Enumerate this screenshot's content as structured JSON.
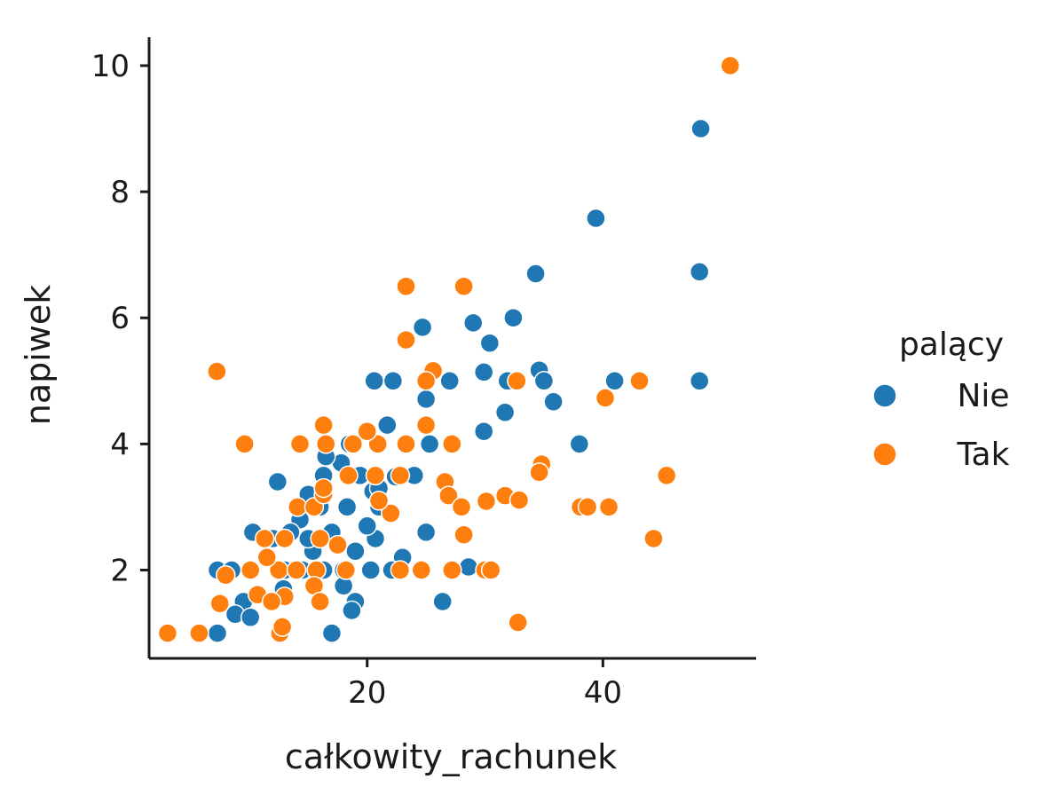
{
  "chart_data": {
    "type": "scatter",
    "xlabel": "całkowity_rachunek",
    "ylabel": "napiwek",
    "xlim": [
      1.5,
      53
    ],
    "ylim": [
      0.6,
      10.45
    ],
    "x_ticks": [
      20,
      40
    ],
    "y_ticks": [
      2,
      4,
      6,
      8,
      10
    ],
    "grid": false,
    "legend": {
      "title": "palący",
      "position": "right",
      "entries": [
        {
          "label": "Nie",
          "color": "#1f77b4"
        },
        {
          "label": "Tak",
          "color": "#ff7f0e"
        }
      ]
    },
    "series": [
      {
        "name": "Nie",
        "color": "#1f77b4",
        "points": [
          [
            48.3,
            9.0
          ],
          [
            39.4,
            7.58
          ],
          [
            48.2,
            6.73
          ],
          [
            34.3,
            6.7
          ],
          [
            48.2,
            5.0
          ],
          [
            32.4,
            6.0
          ],
          [
            29.0,
            5.92
          ],
          [
            30.4,
            5.6
          ],
          [
            24.7,
            5.85
          ],
          [
            29.9,
            5.14
          ],
          [
            34.6,
            5.17
          ],
          [
            35.0,
            5.0
          ],
          [
            35.8,
            4.67
          ],
          [
            41.0,
            5.0
          ],
          [
            31.9,
            5.0
          ],
          [
            27.0,
            5.0
          ],
          [
            20.6,
            5.0
          ],
          [
            22.2,
            5.0
          ],
          [
            31.7,
            4.5
          ],
          [
            25.0,
            4.71
          ],
          [
            29.9,
            4.2
          ],
          [
            38.0,
            4.0
          ],
          [
            25.3,
            4.0
          ],
          [
            21.7,
            4.3
          ],
          [
            18.5,
            4.0
          ],
          [
            17.8,
            3.7
          ],
          [
            16.3,
            3.5
          ],
          [
            12.4,
            3.4
          ],
          [
            15.0,
            3.2
          ],
          [
            19.4,
            3.5
          ],
          [
            20.5,
            3.25
          ],
          [
            24.0,
            3.5
          ],
          [
            22.4,
            3.48
          ],
          [
            16.0,
            3.0
          ],
          [
            14.3,
            2.8
          ],
          [
            18.3,
            3.0
          ],
          [
            21.0,
            3.0
          ],
          [
            13.5,
            2.6
          ],
          [
            12.0,
            2.5
          ],
          [
            10.3,
            2.6
          ],
          [
            11.6,
            2.2
          ],
          [
            14.5,
            2.0
          ],
          [
            16.3,
            2.0
          ],
          [
            18.0,
            2.0
          ],
          [
            20.3,
            2.0
          ],
          [
            23.0,
            2.2
          ],
          [
            25.0,
            2.6
          ],
          [
            28.6,
            2.05
          ],
          [
            7.3,
            2.0
          ],
          [
            8.5,
            2.0
          ],
          [
            9.5,
            1.5
          ],
          [
            8.8,
            1.3
          ],
          [
            10.1,
            1.25
          ],
          [
            18.0,
            1.75
          ],
          [
            19.0,
            1.5
          ],
          [
            18.7,
            1.36
          ],
          [
            17.0,
            1.0
          ],
          [
            7.3,
            1.0
          ],
          [
            26.4,
            1.5
          ],
          [
            12.9,
            1.7
          ],
          [
            15.4,
            2.3
          ],
          [
            20.7,
            2.5
          ],
          [
            22.1,
            2.0
          ],
          [
            13.0,
            2.0
          ],
          [
            15.0,
            2.5
          ],
          [
            17.0,
            2.6
          ],
          [
            19.0,
            2.3
          ],
          [
            20.0,
            2.7
          ],
          [
            21.0,
            3.3
          ],
          [
            16.5,
            3.8
          ]
        ]
      },
      {
        "name": "Tak",
        "color": "#ff7f0e",
        "points": [
          [
            50.8,
            10.0
          ],
          [
            23.3,
            6.5
          ],
          [
            28.2,
            6.5
          ],
          [
            23.3,
            5.65
          ],
          [
            7.25,
            5.15
          ],
          [
            25.6,
            5.16
          ],
          [
            25.0,
            5.0
          ],
          [
            32.7,
            5.0
          ],
          [
            43.1,
            5.0
          ],
          [
            40.2,
            4.73
          ],
          [
            25.0,
            4.3
          ],
          [
            16.3,
            4.3
          ],
          [
            9.6,
            4.0
          ],
          [
            14.3,
            4.0
          ],
          [
            16.5,
            4.0
          ],
          [
            18.8,
            4.0
          ],
          [
            20.9,
            4.0
          ],
          [
            23.3,
            4.0
          ],
          [
            27.2,
            4.0
          ],
          [
            20.0,
            4.2
          ],
          [
            34.8,
            3.68
          ],
          [
            34.6,
            3.55
          ],
          [
            45.4,
            3.5
          ],
          [
            18.4,
            3.5
          ],
          [
            20.7,
            3.5
          ],
          [
            22.8,
            3.5
          ],
          [
            26.6,
            3.4
          ],
          [
            14.1,
            3.0
          ],
          [
            15.5,
            3.0
          ],
          [
            16.3,
            3.2
          ],
          [
            26.9,
            3.18
          ],
          [
            28.0,
            3.0
          ],
          [
            30.1,
            3.09
          ],
          [
            31.7,
            3.18
          ],
          [
            32.9,
            3.11
          ],
          [
            38.1,
            3.0
          ],
          [
            38.7,
            3.0
          ],
          [
            40.5,
            3.0
          ],
          [
            28.2,
            2.56
          ],
          [
            22.0,
            2.9
          ],
          [
            44.3,
            2.5
          ],
          [
            16.0,
            2.5
          ],
          [
            13.0,
            2.5
          ],
          [
            11.3,
            2.5
          ],
          [
            10.1,
            2.0
          ],
          [
            12.5,
            2.0
          ],
          [
            14.0,
            2.0
          ],
          [
            15.7,
            2.0
          ],
          [
            18.2,
            2.0
          ],
          [
            22.8,
            2.0
          ],
          [
            24.6,
            2.0
          ],
          [
            27.2,
            2.0
          ],
          [
            30.0,
            2.0
          ],
          [
            30.5,
            2.0
          ],
          [
            8.0,
            1.92
          ],
          [
            11.5,
            2.2
          ],
          [
            15.5,
            1.75
          ],
          [
            16.0,
            1.5
          ],
          [
            13.0,
            1.58
          ],
          [
            10.7,
            1.61
          ],
          [
            11.9,
            1.5
          ],
          [
            7.5,
            1.47
          ],
          [
            12.6,
            1.0
          ],
          [
            12.8,
            1.1
          ],
          [
            3.07,
            1.0
          ],
          [
            5.75,
            1.0
          ],
          [
            32.8,
            1.17
          ],
          [
            16.3,
            3.3
          ],
          [
            21.0,
            3.1
          ],
          [
            17.5,
            2.4
          ]
        ]
      }
    ]
  }
}
